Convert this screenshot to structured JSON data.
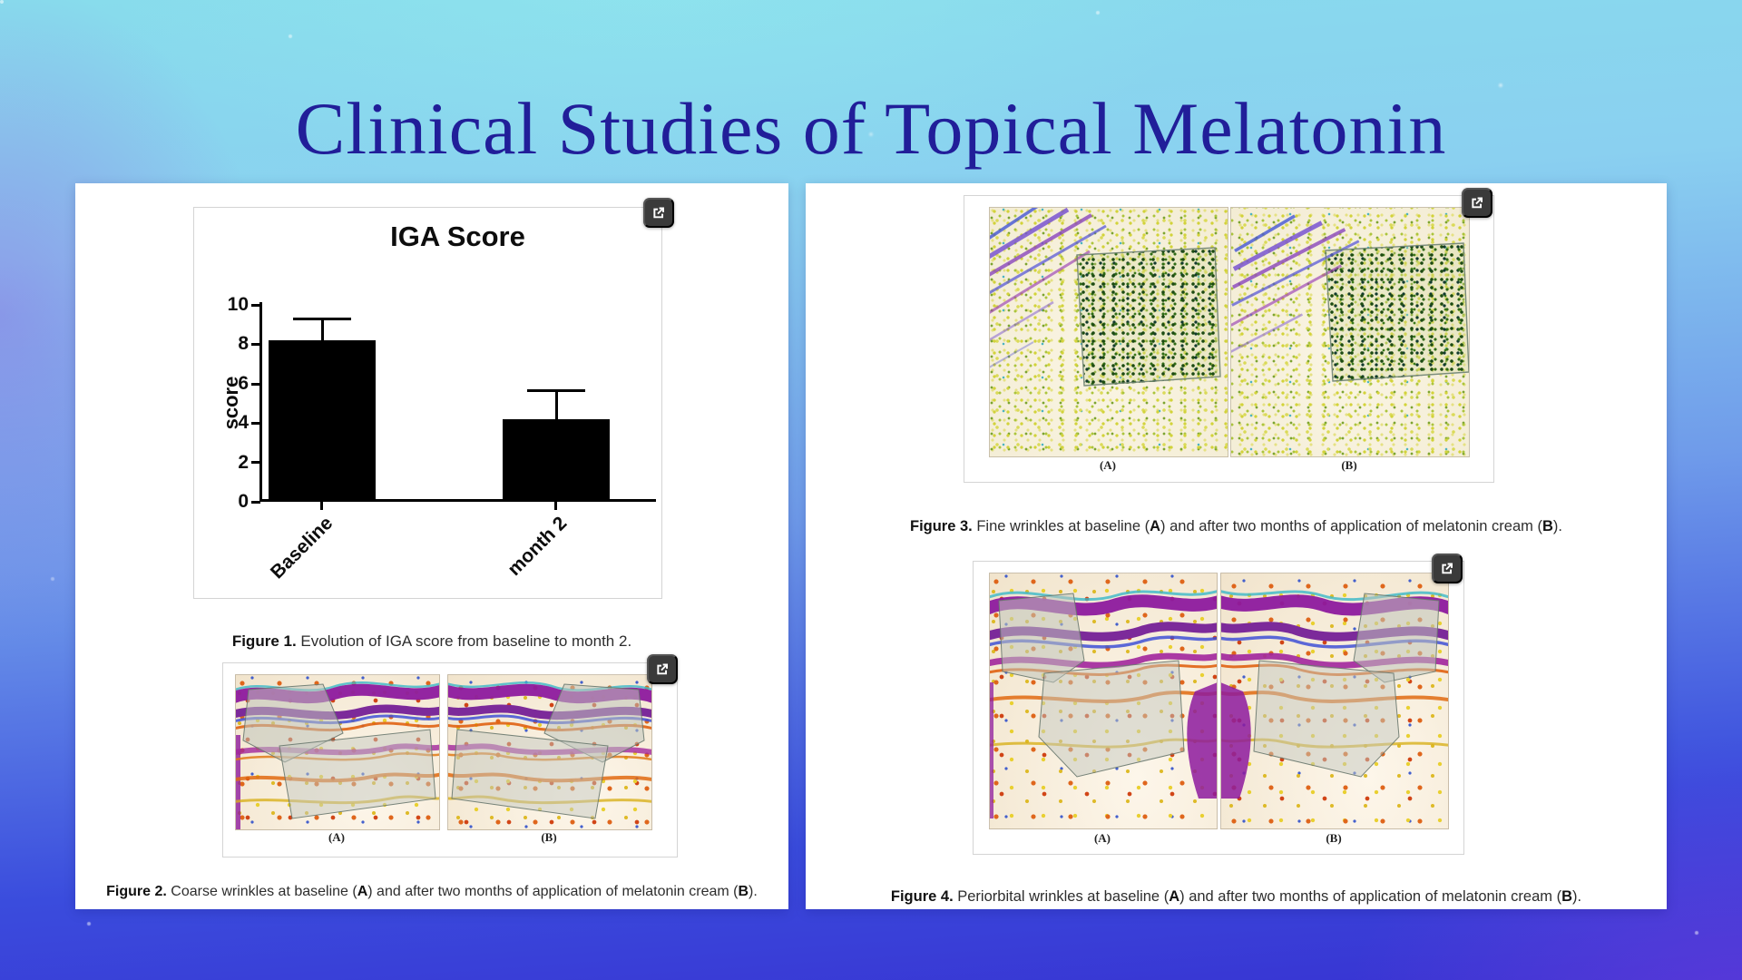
{
  "page": {
    "title": "Clinical Studies of Topical Melatonin"
  },
  "chart_data": {
    "type": "bar",
    "title": "IGA Score",
    "ylabel": "score",
    "xlabel": "",
    "categories": [
      "Baseline",
      "month 2"
    ],
    "values": [
      8.2,
      4.2
    ],
    "error_plus": [
      1.0,
      1.4
    ],
    "ylim": [
      0,
      10
    ],
    "yticks": [
      0,
      2,
      4,
      6,
      8,
      10
    ],
    "bar_color": "#000000",
    "grid": false,
    "legend": false
  },
  "figures": {
    "fig1": {
      "caption_label": "Figure 1.",
      "caption_text": "Evolution of IGA score from baseline to month 2."
    },
    "fig2": {
      "panel_a": "(A)",
      "panel_b": "(B)",
      "caption_label": "Figure 2.",
      "cap_pre": "Coarse wrinkles at baseline (",
      "cap_a": "A",
      "cap_mid": ") and after two months of application of melatonin cream (",
      "cap_b": "B",
      "cap_end": ")."
    },
    "fig3": {
      "panel_a": "(A)",
      "panel_b": "(B)",
      "caption_label": "Figure 3.",
      "cap_pre": "Fine wrinkles at baseline (",
      "cap_a": "A",
      "cap_mid": ") and after two months of application of melatonin cream (",
      "cap_b": "B",
      "cap_end": ")."
    },
    "fig4": {
      "panel_a": "(A)",
      "panel_b": "(B)",
      "caption_label": "Figure 4.",
      "cap_pre": "Periorbital wrinkles at baseline (",
      "cap_a": "A",
      "cap_mid": ") and after two months of application of melatonin cream (",
      "cap_b": "B",
      "cap_end": ")."
    }
  },
  "colors": {
    "background_top": "#87dcec",
    "background_bottom_left": "#2b35d6",
    "background_bottom_right": "#4a3fd8",
    "title_text": "#211e99",
    "bar": "#000000",
    "expand_icon_bg": "#3a3a3a"
  }
}
